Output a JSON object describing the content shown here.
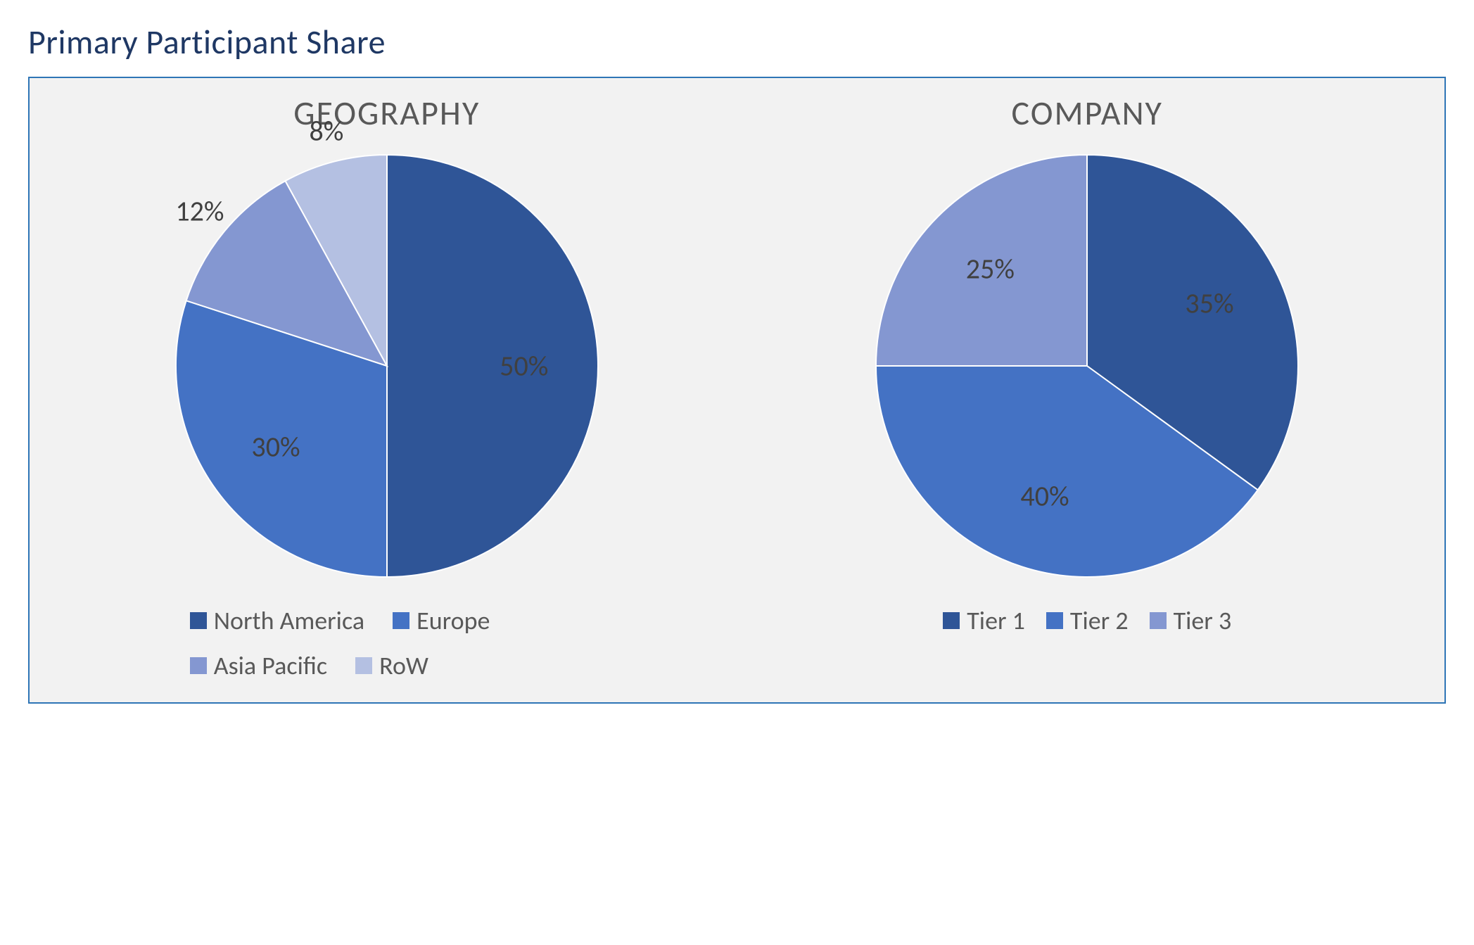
{
  "title": "Primary Participant Share",
  "title_color": "#1f3864",
  "container_border": "#2e75b6",
  "container_bg": "#f2f2f2",
  "label_color": "#404040",
  "legend_color": "#595959",
  "charts": [
    {
      "key": "geography",
      "title": "GEOGRAPHY",
      "type": "pie",
      "pie_radius": 300,
      "label_fontsize": 40,
      "legend_fontsize": 36,
      "slices": [
        {
          "label": "North America",
          "value": 50,
          "color": "#2f5597",
          "data_label": "50%",
          "label_position": "inside"
        },
        {
          "label": "Europe",
          "value": 30,
          "color": "#4472c4",
          "data_label": "30%",
          "label_position": "inside"
        },
        {
          "label": "Asia Pacific",
          "value": 12,
          "color": "#8497d1",
          "data_label": "12%",
          "label_position": "outside"
        },
        {
          "label": "RoW",
          "value": 8,
          "color": "#b4c0e2",
          "data_label": "8%",
          "label_position": "outside"
        }
      ],
      "legend_layout": "two-row"
    },
    {
      "key": "company",
      "title": "COMPANY",
      "type": "pie",
      "pie_radius": 300,
      "label_fontsize": 40,
      "legend_fontsize": 36,
      "slices": [
        {
          "label": "Tier 1",
          "value": 35,
          "color": "#2f5597",
          "data_label": "35%",
          "label_position": "inside"
        },
        {
          "label": "Tier 2",
          "value": 40,
          "color": "#4472c4",
          "data_label": "40%",
          "label_position": "inside"
        },
        {
          "label": "Tier 3",
          "value": 25,
          "color": "#8497d1",
          "data_label": "25%",
          "label_position": "inside"
        }
      ],
      "legend_layout": "one-row"
    }
  ]
}
